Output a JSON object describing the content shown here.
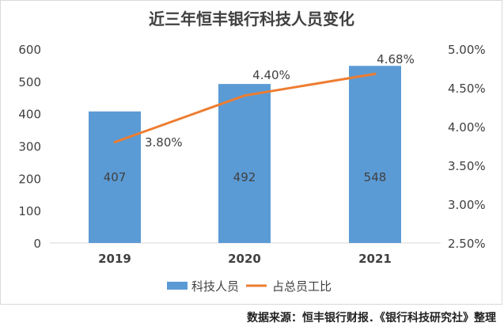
{
  "chart_data": {
    "type": "bar+line",
    "title": "近三年恒丰银行科技人员变化",
    "categories": [
      "2019",
      "2020",
      "2021"
    ],
    "series": [
      {
        "name": "科技人员",
        "type": "bar",
        "axis": "left",
        "values": [
          407,
          492,
          548
        ],
        "labels": [
          "407",
          "492",
          "548"
        ],
        "color": "#5b9bd5"
      },
      {
        "name": "占总员工比",
        "type": "line",
        "axis": "right",
        "values": [
          3.8,
          4.4,
          4.68
        ],
        "labels": [
          "3.80%",
          "4.40%",
          "4.68%"
        ],
        "color": "#ed7d31"
      }
    ],
    "ylim": [
      0,
      600
    ],
    "yticks": [
      "0",
      "100",
      "200",
      "300",
      "400",
      "500",
      "600"
    ],
    "y2lim": [
      2.5,
      5.0
    ],
    "y2ticks": [
      "2.50%",
      "3.00%",
      "3.50%",
      "4.00%",
      "4.50%",
      "5.00%"
    ],
    "grid": false,
    "legend": "bottom"
  },
  "source": "数据来源：恒丰银行财报．《银行科技研究社》整理"
}
